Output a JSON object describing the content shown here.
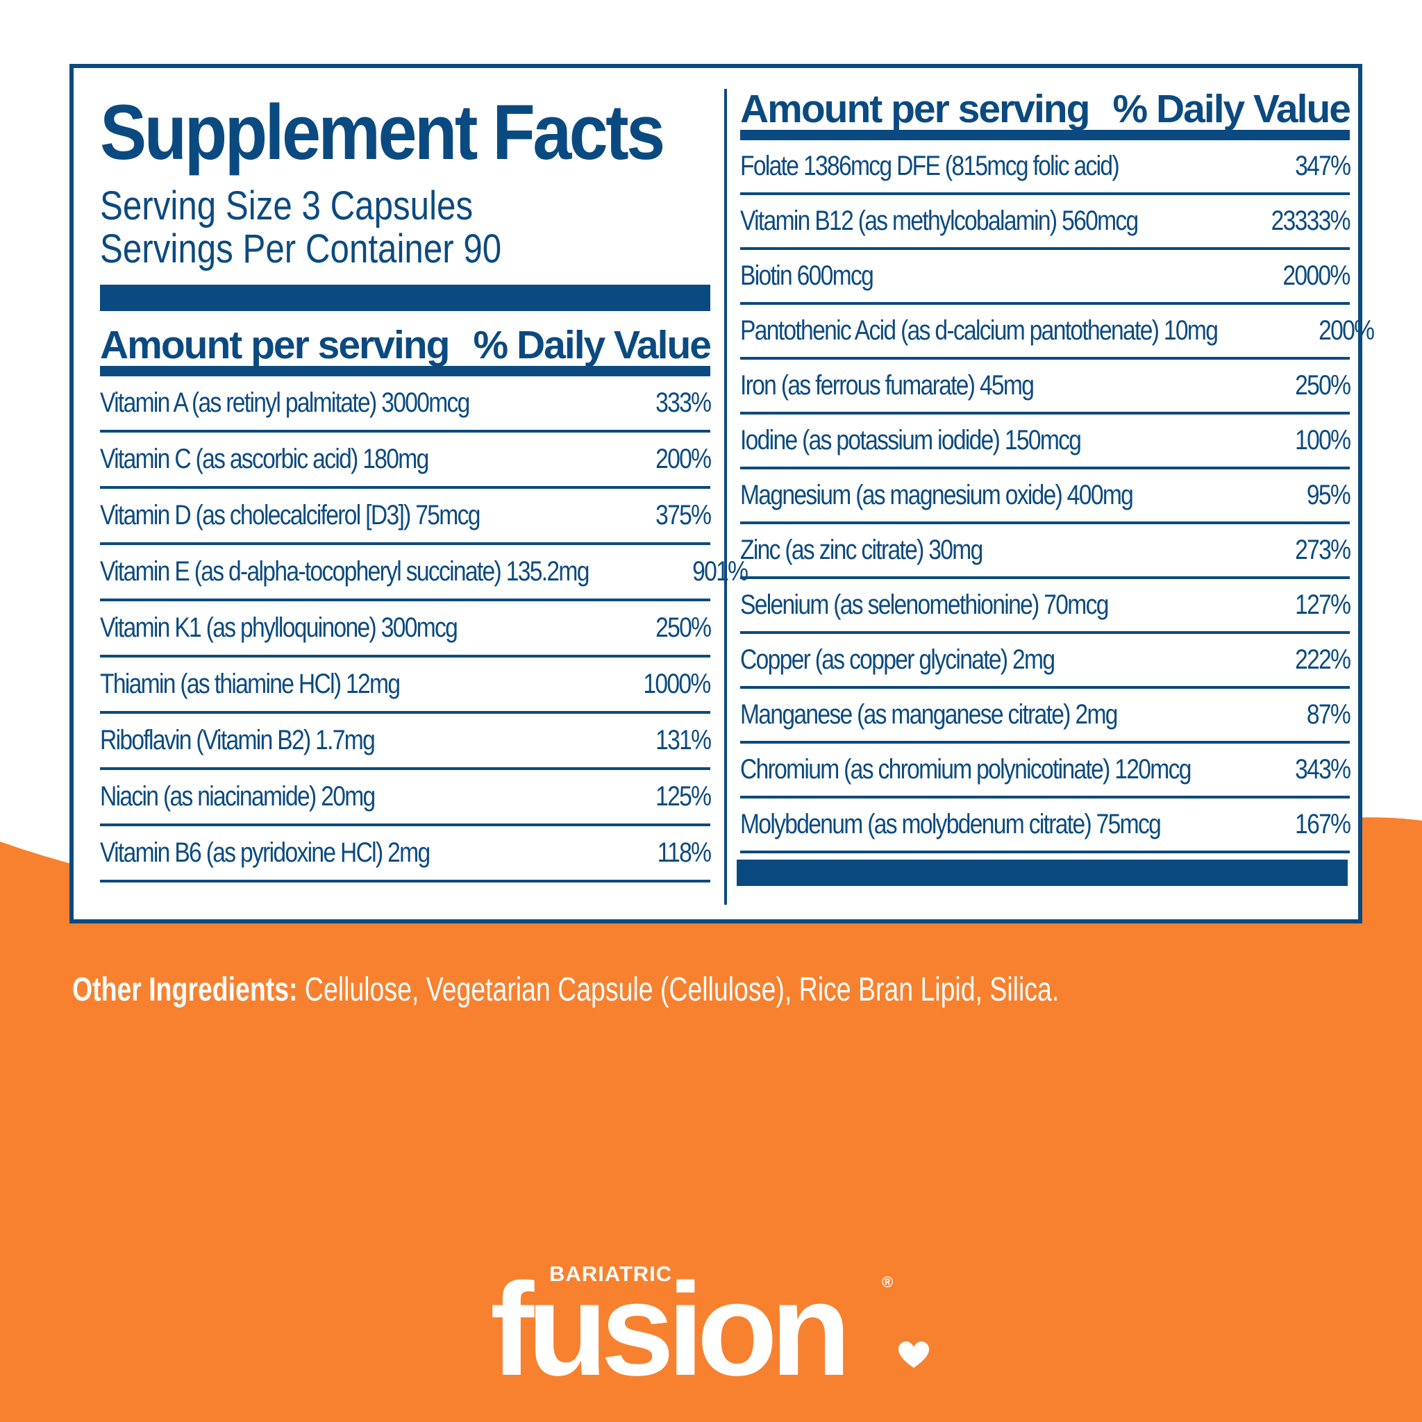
{
  "colors": {
    "navy": "#0b4a80",
    "orange": "#f7812f",
    "white": "#ffffff"
  },
  "panel": {
    "title": "Supplement Facts",
    "serving_size": "Serving Size 3 Capsules",
    "servings_per_container": "Servings Per Container 90"
  },
  "left_table": {
    "header_amount": "Amount per serving",
    "header_dv": "% Daily Value",
    "rows": [
      {
        "name": "Vitamin A (as retinyl palmitate) 3000mcg",
        "dv": "333%"
      },
      {
        "name": "Vitamin C (as ascorbic acid) 180mg",
        "dv": "200%"
      },
      {
        "name": "Vitamin D (as cholecalciferol [D3]) 75mcg",
        "dv": "375%"
      },
      {
        "name": "Vitamin E (as d-alpha-tocopheryl succinate) 135.2mg",
        "dv": "901%"
      },
      {
        "name": "Vitamin K1 (as phylloquinone) 300mcg",
        "dv": "250%"
      },
      {
        "name": "Thiamin (as thiamine HCl) 12mg",
        "dv": "1000%"
      },
      {
        "name": "Riboflavin (Vitamin B2) 1.7mg",
        "dv": "131%"
      },
      {
        "name": "Niacin (as niacinamide) 20mg",
        "dv": "125%"
      },
      {
        "name": "Vitamin B6 (as pyridoxine HCl) 2mg",
        "dv": "118%"
      }
    ]
  },
  "right_table": {
    "header_amount": "Amount per serving",
    "header_dv": "% Daily Value",
    "rows": [
      {
        "name": "Folate 1386mcg DFE (815mcg folic acid)",
        "dv": "347%"
      },
      {
        "name": "Vitamin B12 (as methylcobalamin) 560mcg",
        "dv": "23333%"
      },
      {
        "name": "Biotin 600mcg",
        "dv": "2000%"
      },
      {
        "name": "Pantothenic Acid (as d-calcium pantothenate) 10mg",
        "dv": "200%"
      },
      {
        "name": "Iron (as ferrous fumarate) 45mg",
        "dv": "250%"
      },
      {
        "name": "Iodine (as potassium iodide) 150mcg",
        "dv": "100%"
      },
      {
        "name": "Magnesium (as magnesium oxide) 400mg",
        "dv": "95%"
      },
      {
        "name": "Zinc (as zinc citrate) 30mg",
        "dv": "273%"
      },
      {
        "name": "Selenium (as selenomethionine) 70mcg",
        "dv": "127%"
      },
      {
        "name": "Copper (as copper glycinate) 2mg",
        "dv": "222%"
      },
      {
        "name": "Manganese (as manganese citrate) 2mg",
        "dv": "87%"
      },
      {
        "name": "Chromium (as chromium polynicotinate) 120mcg",
        "dv": "343%"
      },
      {
        "name": "Molybdenum (as molybdenum citrate) 75mcg",
        "dv": "167%"
      }
    ]
  },
  "other_ingredients": {
    "label": "Other Ingredients:",
    "text": "Cellulose, Vegetarian Capsule (Cellulose), Rice Bran Lipid, Silica."
  },
  "logo": {
    "small": "BARIATRIC",
    "main": "fusion",
    "reg": "®",
    "icon": "heart-icon"
  }
}
